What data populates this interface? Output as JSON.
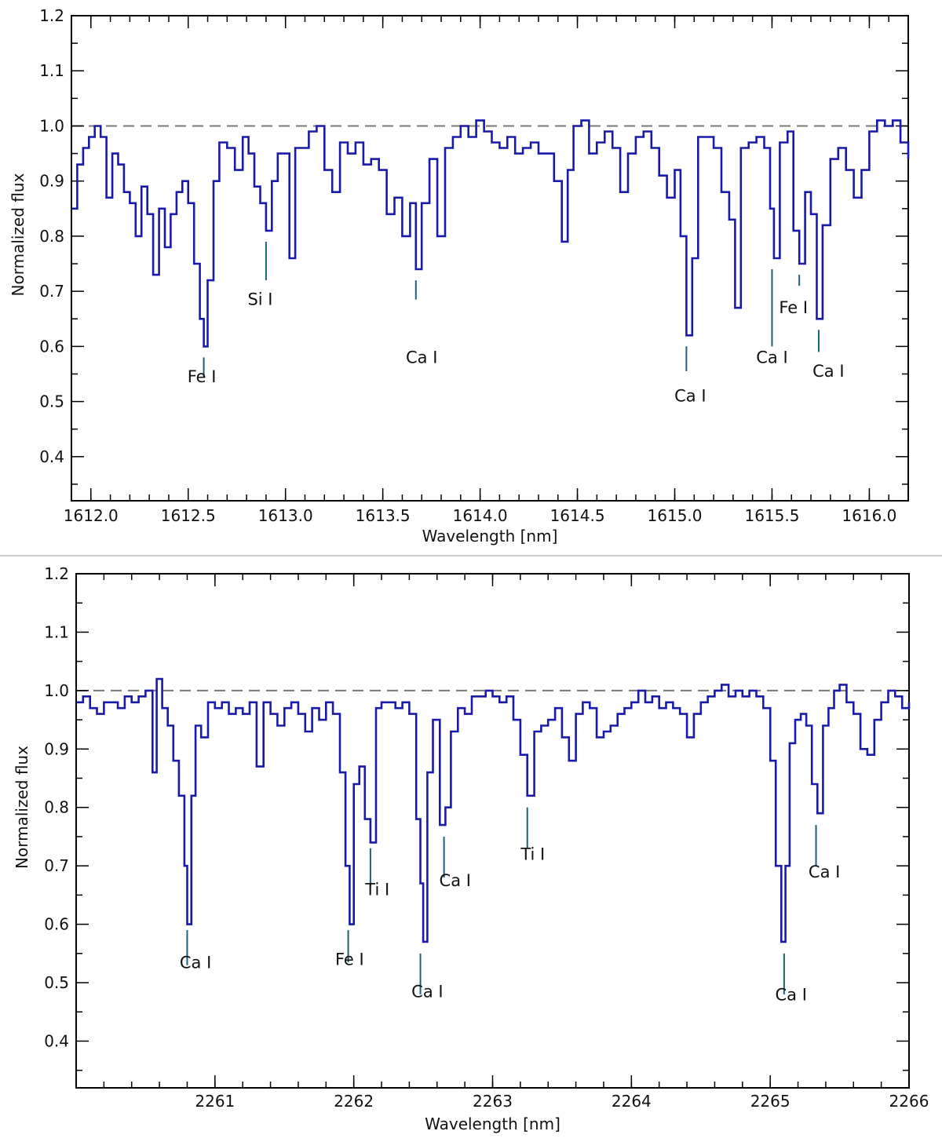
{
  "chart_data": [
    {
      "type": "line",
      "name": "top-panel",
      "xlabel": "Wavelength [nm]",
      "ylabel": "Normalized flux",
      "xlim": [
        1611.9,
        1616.2
      ],
      "ylim": [
        0.32,
        1.2
      ],
      "xticks": [
        1612.0,
        1612.5,
        1613.0,
        1613.5,
        1614.0,
        1614.5,
        1615.0,
        1615.5,
        1616.0
      ],
      "xtick_labels": [
        "1612.0",
        "1612.5",
        "1613.0",
        "1613.5",
        "1614.0",
        "1614.5",
        "1615.0",
        "1615.5",
        "1616.0"
      ],
      "yticks": [
        0.4,
        0.5,
        0.6,
        0.7,
        0.8,
        0.9,
        1.0,
        1.1,
        1.2
      ],
      "ytick_labels": [
        "0.4",
        "0.5",
        "0.6",
        "0.7",
        "0.8",
        "0.9",
        "1.0",
        "1.1",
        "1.2"
      ],
      "continuum": 1.0,
      "series": [
        {
          "color": "#1a1aaa",
          "x": [
            1611.9,
            1611.93,
            1611.96,
            1611.99,
            1612.02,
            1612.05,
            1612.08,
            1612.11,
            1612.14,
            1612.17,
            1612.2,
            1612.23,
            1612.26,
            1612.29,
            1612.32,
            1612.35,
            1612.38,
            1612.41,
            1612.44,
            1612.47,
            1612.5,
            1612.53,
            1612.56,
            1612.58,
            1612.6,
            1612.63,
            1612.66,
            1612.7,
            1612.74,
            1612.78,
            1612.81,
            1612.84,
            1612.87,
            1612.9,
            1612.93,
            1612.96,
            1612.99,
            1613.02,
            1613.05,
            1613.08,
            1613.12,
            1613.16,
            1613.2,
            1613.24,
            1613.28,
            1613.32,
            1613.36,
            1613.4,
            1613.44,
            1613.48,
            1613.52,
            1613.56,
            1613.6,
            1613.64,
            1613.67,
            1613.7,
            1613.74,
            1613.78,
            1613.82,
            1613.86,
            1613.9,
            1613.94,
            1613.98,
            1614.02,
            1614.06,
            1614.1,
            1614.14,
            1614.18,
            1614.22,
            1614.26,
            1614.3,
            1614.34,
            1614.38,
            1614.42,
            1614.45,
            1614.48,
            1614.52,
            1614.56,
            1614.6,
            1614.64,
            1614.68,
            1614.72,
            1614.76,
            1614.8,
            1614.84,
            1614.88,
            1614.92,
            1614.96,
            1615.0,
            1615.03,
            1615.06,
            1615.09,
            1615.12,
            1615.16,
            1615.2,
            1615.24,
            1615.28,
            1615.31,
            1615.34,
            1615.38,
            1615.42,
            1615.46,
            1615.49,
            1615.51,
            1615.54,
            1615.58,
            1615.61,
            1615.64,
            1615.67,
            1615.7,
            1615.73,
            1615.76,
            1615.8,
            1615.84,
            1615.88,
            1615.92,
            1615.96,
            1616.0,
            1616.04,
            1616.08,
            1616.12,
            1616.16,
            1616.2
          ],
          "y": [
            0.85,
            0.93,
            0.96,
            0.98,
            1.0,
            0.98,
            0.87,
            0.95,
            0.93,
            0.88,
            0.86,
            0.8,
            0.89,
            0.84,
            0.73,
            0.85,
            0.78,
            0.84,
            0.88,
            0.9,
            0.86,
            0.75,
            0.65,
            0.6,
            0.72,
            0.9,
            0.97,
            0.96,
            0.92,
            0.98,
            0.95,
            0.89,
            0.86,
            0.81,
            0.9,
            0.95,
            0.95,
            0.76,
            0.96,
            0.96,
            0.99,
            1.0,
            0.92,
            0.88,
            0.97,
            0.95,
            0.97,
            0.93,
            0.94,
            0.92,
            0.84,
            0.87,
            0.8,
            0.86,
            0.74,
            0.86,
            0.94,
            0.8,
            0.96,
            0.98,
            1.0,
            0.98,
            1.01,
            0.99,
            0.97,
            0.96,
            0.98,
            0.95,
            0.96,
            0.97,
            0.95,
            0.95,
            0.9,
            0.79,
            0.92,
            1.0,
            1.01,
            0.95,
            0.97,
            0.99,
            0.96,
            0.88,
            0.95,
            0.98,
            0.99,
            0.96,
            0.91,
            0.87,
            0.92,
            0.8,
            0.62,
            0.76,
            0.98,
            0.98,
            0.96,
            0.88,
            0.83,
            0.67,
            0.96,
            0.97,
            0.98,
            0.96,
            0.85,
            0.76,
            0.97,
            0.99,
            0.81,
            0.75,
            0.88,
            0.84,
            0.65,
            0.82,
            0.94,
            0.96,
            0.92,
            0.87,
            0.92,
            0.99,
            1.01,
            1.0,
            1.01,
            0.97,
            0.94
          ]
        }
      ],
      "annotations": [
        {
          "label": "Fe I",
          "x": 1612.58,
          "label_x": 1612.57,
          "label_y": 0.535,
          "tick_from": 0.58,
          "tick_to": 0.545
        },
        {
          "label": "Si I",
          "x": 1612.9,
          "label_x": 1612.87,
          "label_y": 0.675,
          "tick_from": 0.79,
          "tick_to": 0.72
        },
        {
          "label": "Ca I",
          "x": 1613.67,
          "label_x": 1613.7,
          "label_y": 0.57,
          "tick_from": 0.72,
          "tick_to": 0.685
        },
        {
          "label": "Ca I",
          "x": 1615.06,
          "label_x": 1615.08,
          "label_y": 0.5,
          "tick_from": 0.6,
          "tick_to": 0.555
        },
        {
          "label": "Ca I",
          "x": 1615.5,
          "label_x": 1615.5,
          "label_y": 0.57,
          "tick_from": 0.74,
          "tick_to": 0.6
        },
        {
          "label": "Fe I",
          "x": 1615.64,
          "label_x": 1615.61,
          "label_y": 0.66,
          "tick_from": 0.73,
          "tick_to": 0.71
        },
        {
          "label": "Ca I",
          "x": 1615.74,
          "label_x": 1615.79,
          "label_y": 0.545,
          "tick_from": 0.63,
          "tick_to": 0.59
        }
      ]
    },
    {
      "type": "line",
      "name": "bottom-panel",
      "xlabel": "Wavelength [nm]",
      "ylabel": "Normalized flux",
      "xlim": [
        2260.0,
        2266.0
      ],
      "ylim": [
        0.32,
        1.2
      ],
      "xticks": [
        2261,
        2262,
        2263,
        2264,
        2265,
        2266
      ],
      "xtick_labels": [
        "2261",
        "2262",
        "2263",
        "2264",
        "2265",
        "2266"
      ],
      "yticks": [
        0.4,
        0.5,
        0.6,
        0.7,
        0.8,
        0.9,
        1.0,
        1.1,
        1.2
      ],
      "ytick_labels": [
        "0.4",
        "0.5",
        "0.6",
        "0.7",
        "0.8",
        "0.9",
        "1.0",
        "1.1",
        "1.2"
      ],
      "continuum": 1.0,
      "series": [
        {
          "color": "#1a1aaa",
          "x": [
            2260.0,
            2260.05,
            2260.1,
            2260.15,
            2260.2,
            2260.25,
            2260.3,
            2260.35,
            2260.4,
            2260.45,
            2260.5,
            2260.55,
            2260.58,
            2260.62,
            2260.66,
            2260.7,
            2260.74,
            2260.78,
            2260.8,
            2260.83,
            2260.86,
            2260.9,
            2260.95,
            2261.0,
            2261.05,
            2261.1,
            2261.15,
            2261.2,
            2261.25,
            2261.3,
            2261.35,
            2261.4,
            2261.45,
            2261.5,
            2261.55,
            2261.6,
            2261.65,
            2261.7,
            2261.75,
            2261.8,
            2261.85,
            2261.9,
            2261.94,
            2261.97,
            2262.0,
            2262.04,
            2262.08,
            2262.12,
            2262.16,
            2262.2,
            2262.25,
            2262.3,
            2262.35,
            2262.4,
            2262.45,
            2262.48,
            2262.5,
            2262.53,
            2262.57,
            2262.62,
            2262.66,
            2262.7,
            2262.75,
            2262.8,
            2262.85,
            2262.9,
            2262.95,
            2263.0,
            2263.05,
            2263.1,
            2263.15,
            2263.2,
            2263.25,
            2263.3,
            2263.35,
            2263.4,
            2263.45,
            2263.5,
            2263.55,
            2263.6,
            2263.65,
            2263.7,
            2263.75,
            2263.8,
            2263.85,
            2263.9,
            2263.95,
            2264.0,
            2264.05,
            2264.1,
            2264.15,
            2264.2,
            2264.25,
            2264.3,
            2264.35,
            2264.4,
            2264.45,
            2264.5,
            2264.55,
            2264.6,
            2264.65,
            2264.7,
            2264.75,
            2264.8,
            2264.85,
            2264.9,
            2264.95,
            2265.0,
            2265.04,
            2265.08,
            2265.11,
            2265.14,
            2265.18,
            2265.22,
            2265.26,
            2265.3,
            2265.34,
            2265.38,
            2265.42,
            2265.46,
            2265.5,
            2265.55,
            2265.6,
            2265.65,
            2265.7,
            2265.75,
            2265.8,
            2265.85,
            2265.9,
            2265.95,
            2266.0
          ],
          "y": [
            0.98,
            0.99,
            0.97,
            0.96,
            0.98,
            0.98,
            0.97,
            0.99,
            0.98,
            0.99,
            1.0,
            0.86,
            1.02,
            0.97,
            0.94,
            0.88,
            0.82,
            0.7,
            0.6,
            0.82,
            0.94,
            0.92,
            0.98,
            0.97,
            0.98,
            0.96,
            0.97,
            0.96,
            0.98,
            0.87,
            0.98,
            0.96,
            0.94,
            0.97,
            0.98,
            0.96,
            0.93,
            0.97,
            0.95,
            0.98,
            0.96,
            0.86,
            0.7,
            0.6,
            0.84,
            0.87,
            0.78,
            0.74,
            0.97,
            0.98,
            0.98,
            0.97,
            0.98,
            0.96,
            0.78,
            0.67,
            0.57,
            0.86,
            0.95,
            0.77,
            0.8,
            0.93,
            0.97,
            0.96,
            0.99,
            0.99,
            1.0,
            0.99,
            0.98,
            0.99,
            0.95,
            0.89,
            0.82,
            0.93,
            0.94,
            0.95,
            0.97,
            0.92,
            0.88,
            0.96,
            0.98,
            0.97,
            0.92,
            0.93,
            0.94,
            0.96,
            0.97,
            0.98,
            1.0,
            0.98,
            0.99,
            0.97,
            0.98,
            0.97,
            0.96,
            0.92,
            0.96,
            0.98,
            0.99,
            1.0,
            1.01,
            0.99,
            1.0,
            0.99,
            1.0,
            0.99,
            0.97,
            0.88,
            0.7,
            0.57,
            0.7,
            0.91,
            0.95,
            0.96,
            0.94,
            0.84,
            0.79,
            0.94,
            0.97,
            1.0,
            1.01,
            0.98,
            0.96,
            0.9,
            0.89,
            0.95,
            0.98,
            1.0,
            0.99,
            0.97,
            0.98
          ]
        }
      ],
      "annotations": [
        {
          "label": "Ca I",
          "x": 2260.8,
          "label_x": 2260.86,
          "label_y": 0.525,
          "tick_from": 0.59,
          "tick_to": 0.53
        },
        {
          "label": "Fe I",
          "x": 2261.96,
          "label_x": 2261.97,
          "label_y": 0.53,
          "tick_from": 0.59,
          "tick_to": 0.535
        },
        {
          "label": "Ti I",
          "x": 2262.12,
          "label_x": 2262.17,
          "label_y": 0.65,
          "tick_from": 0.73,
          "tick_to": 0.665
        },
        {
          "label": "Ca I",
          "x": 2262.48,
          "label_x": 2262.53,
          "label_y": 0.475,
          "tick_from": 0.55,
          "tick_to": 0.48
        },
        {
          "label": "Ca I",
          "x": 2262.65,
          "label_x": 2262.73,
          "label_y": 0.665,
          "tick_from": 0.75,
          "tick_to": 0.68
        },
        {
          "label": "Ti I",
          "x": 2263.25,
          "label_x": 2263.29,
          "label_y": 0.71,
          "tick_from": 0.8,
          "tick_to": 0.73
        },
        {
          "label": "Ca I",
          "x": 2265.1,
          "label_x": 2265.15,
          "label_y": 0.47,
          "tick_from": 0.55,
          "tick_to": 0.48
        },
        {
          "label": "Ca I",
          "x": 2265.33,
          "label_x": 2265.39,
          "label_y": 0.68,
          "tick_from": 0.77,
          "tick_to": 0.7
        }
      ]
    }
  ]
}
